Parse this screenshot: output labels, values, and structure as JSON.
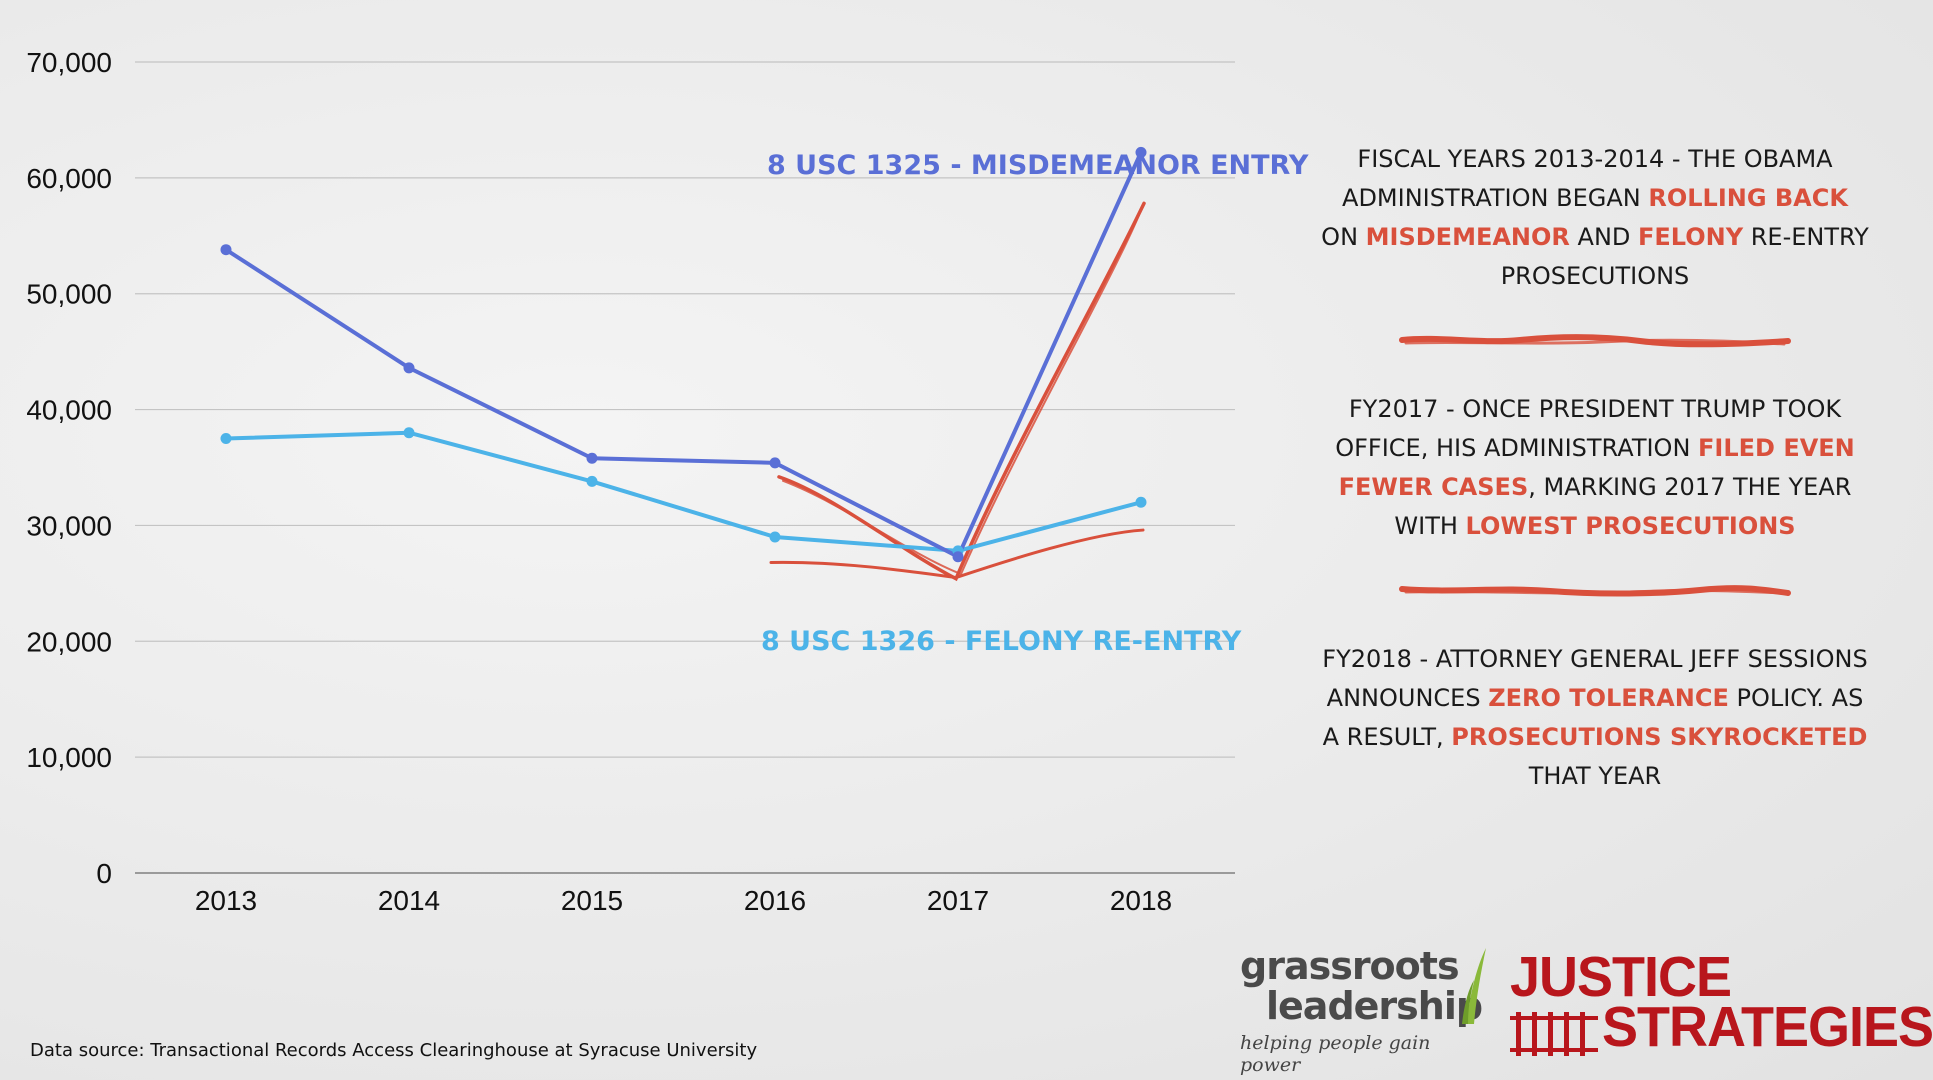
{
  "chart_data": {
    "type": "line",
    "title": "",
    "xlabel": "",
    "ylabel": "",
    "categories": [
      "2013",
      "2014",
      "2015",
      "2016",
      "2017",
      "2018"
    ],
    "ylim": [
      0,
      70000
    ],
    "yticks": [
      0,
      10000,
      20000,
      30000,
      40000,
      50000,
      60000,
      70000
    ],
    "ytick_labels": [
      "0",
      "10,000",
      "20,000",
      "30,000",
      "40,000",
      "50,000",
      "60,000",
      "70,000"
    ],
    "grid": true,
    "series": [
      {
        "name": "8 USC 1325 - MISDEMEANOR ENTRY",
        "color": "#5a6fd6",
        "values": [
          53800,
          43600,
          35800,
          35400,
          27300,
          62200
        ]
      },
      {
        "name": "8 USC 1326 - FELONY RE-ENTRY",
        "color": "#4cb3e8",
        "values": [
          37500,
          38000,
          33800,
          29000,
          27800,
          32000
        ]
      }
    ],
    "annotation_color": "#d9503c"
  },
  "annotations": [
    {
      "parts": [
        {
          "t": "FISCAL YEARS 2013-2014 - THE OBAMA ADMINISTRATION BEGAN ",
          "hl": false
        },
        {
          "t": "ROLLING BACK",
          "hl": true
        },
        {
          "t": " ON ",
          "hl": false
        },
        {
          "t": "MISDEMEANOR",
          "hl": true
        },
        {
          "t": " AND ",
          "hl": false
        },
        {
          "t": "FELONY",
          "hl": true
        },
        {
          "t": " RE-ENTRY PROSECUTIONS",
          "hl": false
        }
      ]
    },
    {
      "parts": [
        {
          "t": "FY2017 - ONCE PRESIDENT TRUMP TOOK OFFICE, HIS ADMINISTRATION ",
          "hl": false
        },
        {
          "t": "FILED EVEN FEWER CASES",
          "hl": true
        },
        {
          "t": ", MARKING 2017 THE YEAR WITH ",
          "hl": false
        },
        {
          "t": "LOWEST PROSECUTIONS",
          "hl": true
        }
      ]
    },
    {
      "parts": [
        {
          "t": "FY2018 -  ATTORNEY GENERAL JEFF SESSIONS ANNOUNCES ",
          "hl": false
        },
        {
          "t": "ZERO TOLERANCE",
          "hl": true
        },
        {
          "t": " POLICY. AS A RESULT, ",
          "hl": false
        },
        {
          "t": "PROSECUTIONS SKYROCKETED",
          "hl": true
        },
        {
          "t": " THAT YEAR",
          "hl": false
        }
      ]
    }
  ],
  "footer": {
    "source": "Data source:  Transactional Records Access Clearinghouse at Syracuse University"
  },
  "logos": {
    "grassroots": {
      "line1": "grassroots",
      "line2": "leadership",
      "tagline": "helping people gain power"
    },
    "justice": {
      "line1": "JUSTICE",
      "line2": "STRATEGIES"
    }
  }
}
